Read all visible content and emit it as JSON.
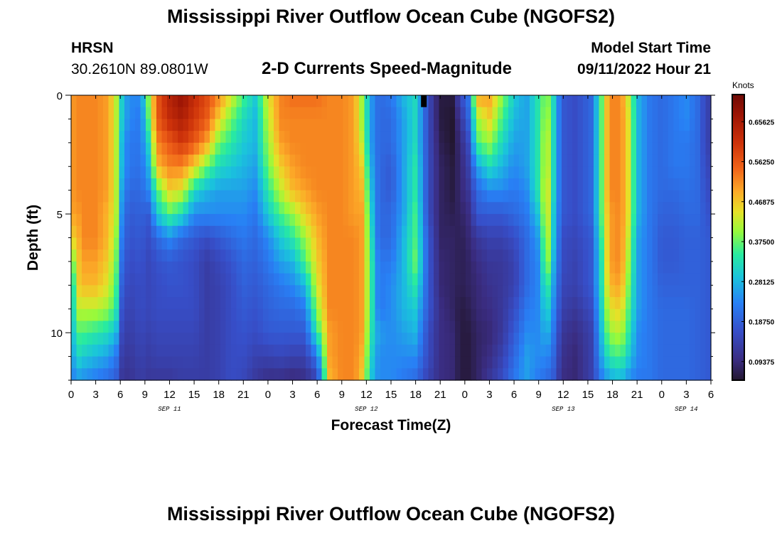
{
  "title": "Mississippi River Outflow Ocean Cube (NGOFS2)",
  "title_repeat": "Mississippi River Outflow Ocean Cube (NGOFS2)",
  "station": {
    "name": "HRSN",
    "coords": "30.2610N  89.0801W"
  },
  "model": {
    "label": "Model Start Time",
    "value": "09/11/2022 Hour 21"
  },
  "chart_data": {
    "type": "heatmap",
    "title": "2-D Currents Speed-Magnitude",
    "xlabel": "Forecast Time(Z)",
    "ylabel": "Depth (ft)",
    "units": "Knots",
    "x_hours_range": [
      0,
      78
    ],
    "x_tick_step_hours": 3,
    "x_tick_labels": [
      "0",
      "3",
      "6",
      "9",
      "12",
      "15",
      "18",
      "21",
      "0",
      "3",
      "6",
      "9",
      "12",
      "15",
      "18",
      "21",
      "0",
      "3",
      "6",
      "9",
      "12",
      "15",
      "18",
      "21",
      "0",
      "3",
      "6"
    ],
    "day_labels": [
      {
        "label": "SEP 11",
        "hour": 12
      },
      {
        "label": "SEP 12",
        "hour": 36
      },
      {
        "label": "SEP 13",
        "hour": 60
      },
      {
        "label": "SEP 14",
        "hour": 75
      }
    ],
    "y_range_ft": [
      0,
      12
    ],
    "y_tick_values": [
      0,
      5,
      10
    ],
    "value_range": [
      0.05,
      0.72
    ],
    "colorbar_ticks": [
      "0.09375",
      "0.18750",
      "0.28125",
      "0.37500",
      "0.46875",
      "0.56250",
      "0.65625"
    ],
    "depth_levels_ft": [
      0,
      1,
      2,
      3,
      4,
      5,
      6,
      7,
      8,
      9,
      10,
      11,
      12
    ],
    "columns": [
      {
        "hour": 0,
        "values": [
          0.5,
          0.5,
          0.5,
          0.5,
          0.5,
          0.5,
          0.45,
          0.35,
          0.26,
          0.26,
          0.26,
          0.24,
          0.22
        ]
      },
      {
        "hour": 0.75,
        "values": [
          0.52,
          0.52,
          0.52,
          0.52,
          0.52,
          0.5,
          0.48,
          0.46,
          0.46,
          0.42,
          0.36,
          0.32,
          0.25
        ]
      },
      {
        "hour": 1.5,
        "values": [
          0.52,
          0.52,
          0.52,
          0.52,
          0.52,
          0.52,
          0.52,
          0.5,
          0.48,
          0.42,
          0.36,
          0.3,
          0.24
        ]
      },
      {
        "hour": 3,
        "values": [
          0.52,
          0.52,
          0.52,
          0.52,
          0.52,
          0.52,
          0.52,
          0.5,
          0.48,
          0.42,
          0.34,
          0.28,
          0.22
        ]
      },
      {
        "hour": 4.5,
        "values": [
          0.5,
          0.5,
          0.5,
          0.5,
          0.5,
          0.48,
          0.48,
          0.46,
          0.44,
          0.4,
          0.32,
          0.26,
          0.2
        ]
      },
      {
        "hour": 5.5,
        "values": [
          0.42,
          0.42,
          0.42,
          0.42,
          0.42,
          0.42,
          0.4,
          0.38,
          0.36,
          0.34,
          0.28,
          0.22,
          0.18
        ]
      },
      {
        "hour": 6,
        "values": [
          0.32,
          0.32,
          0.3,
          0.3,
          0.28,
          0.26,
          0.24,
          0.22,
          0.2,
          0.18,
          0.16,
          0.14,
          0.12
        ]
      },
      {
        "hour": 7,
        "values": [
          0.24,
          0.24,
          0.22,
          0.22,
          0.2,
          0.18,
          0.17,
          0.16,
          0.15,
          0.14,
          0.13,
          0.12,
          0.11
        ]
      },
      {
        "hour": 8.5,
        "values": [
          0.24,
          0.22,
          0.22,
          0.21,
          0.2,
          0.19,
          0.18,
          0.17,
          0.16,
          0.16,
          0.15,
          0.14,
          0.13
        ]
      },
      {
        "hour": 9.5,
        "values": [
          0.4,
          0.38,
          0.32,
          0.28,
          0.24,
          0.18,
          0.16,
          0.15,
          0.15,
          0.15,
          0.14,
          0.13,
          0.12
        ]
      },
      {
        "hour": 10.5,
        "values": [
          0.56,
          0.56,
          0.52,
          0.48,
          0.36,
          0.3,
          0.2,
          0.17,
          0.16,
          0.16,
          0.15,
          0.14,
          0.12
        ]
      },
      {
        "hour": 12,
        "values": [
          0.64,
          0.62,
          0.56,
          0.52,
          0.46,
          0.36,
          0.24,
          0.18,
          0.17,
          0.16,
          0.15,
          0.14,
          0.12
        ]
      },
      {
        "hour": 13.5,
        "values": [
          0.68,
          0.65,
          0.6,
          0.52,
          0.44,
          0.32,
          0.2,
          0.17,
          0.17,
          0.16,
          0.15,
          0.14,
          0.13
        ]
      },
      {
        "hour": 15,
        "values": [
          0.62,
          0.6,
          0.56,
          0.46,
          0.32,
          0.24,
          0.18,
          0.16,
          0.16,
          0.16,
          0.15,
          0.14,
          0.13
        ]
      },
      {
        "hour": 16.5,
        "values": [
          0.58,
          0.56,
          0.5,
          0.38,
          0.28,
          0.24,
          0.16,
          0.13,
          0.13,
          0.13,
          0.13,
          0.13,
          0.13
        ]
      },
      {
        "hour": 18,
        "values": [
          0.52,
          0.46,
          0.38,
          0.32,
          0.26,
          0.24,
          0.18,
          0.15,
          0.14,
          0.14,
          0.14,
          0.14,
          0.14
        ]
      },
      {
        "hour": 19.5,
        "values": [
          0.44,
          0.38,
          0.34,
          0.3,
          0.26,
          0.24,
          0.2,
          0.17,
          0.16,
          0.16,
          0.16,
          0.16,
          0.16
        ]
      },
      {
        "hour": 21,
        "values": [
          0.36,
          0.32,
          0.3,
          0.28,
          0.26,
          0.24,
          0.22,
          0.2,
          0.19,
          0.18,
          0.17,
          0.16,
          0.15
        ]
      },
      {
        "hour": 22.5,
        "values": [
          0.3,
          0.28,
          0.28,
          0.26,
          0.24,
          0.22,
          0.2,
          0.19,
          0.18,
          0.17,
          0.16,
          0.14,
          0.12
        ]
      },
      {
        "hour": 24,
        "values": [
          0.44,
          0.42,
          0.4,
          0.38,
          0.34,
          0.3,
          0.24,
          0.22,
          0.2,
          0.19,
          0.18,
          0.14,
          0.1
        ]
      },
      {
        "hour": 25.5,
        "values": [
          0.52,
          0.52,
          0.5,
          0.46,
          0.42,
          0.36,
          0.3,
          0.26,
          0.22,
          0.2,
          0.18,
          0.15,
          0.1
        ]
      },
      {
        "hour": 27,
        "values": [
          0.54,
          0.52,
          0.52,
          0.5,
          0.48,
          0.4,
          0.34,
          0.28,
          0.24,
          0.2,
          0.18,
          0.14,
          0.09
        ]
      },
      {
        "hour": 28.5,
        "values": [
          0.54,
          0.52,
          0.52,
          0.52,
          0.5,
          0.46,
          0.4,
          0.36,
          0.28,
          0.22,
          0.18,
          0.14,
          0.1
        ]
      },
      {
        "hour": 30,
        "values": [
          0.54,
          0.52,
          0.52,
          0.52,
          0.52,
          0.5,
          0.48,
          0.46,
          0.44,
          0.4,
          0.34,
          0.22,
          0.14
        ]
      },
      {
        "hour": 31.5,
        "values": [
          0.52,
          0.52,
          0.52,
          0.52,
          0.52,
          0.52,
          0.52,
          0.52,
          0.52,
          0.52,
          0.5,
          0.5,
          0.48
        ]
      },
      {
        "hour": 33,
        "values": [
          0.52,
          0.52,
          0.52,
          0.52,
          0.52,
          0.52,
          0.52,
          0.52,
          0.52,
          0.52,
          0.52,
          0.52,
          0.52
        ]
      },
      {
        "hour": 34.5,
        "values": [
          0.5,
          0.5,
          0.5,
          0.5,
          0.5,
          0.5,
          0.52,
          0.52,
          0.52,
          0.52,
          0.52,
          0.52,
          0.52
        ]
      },
      {
        "hour": 35.5,
        "values": [
          0.4,
          0.4,
          0.42,
          0.46,
          0.48,
          0.5,
          0.5,
          0.5,
          0.5,
          0.5,
          0.5,
          0.48,
          0.46
        ]
      },
      {
        "hour": 36.5,
        "values": [
          0.26,
          0.26,
          0.26,
          0.28,
          0.3,
          0.32,
          0.34,
          0.36,
          0.36,
          0.36,
          0.34,
          0.32,
          0.3
        ]
      },
      {
        "hour": 37.5,
        "values": [
          0.2,
          0.2,
          0.2,
          0.2,
          0.2,
          0.2,
          0.2,
          0.22,
          0.22,
          0.22,
          0.26,
          0.24,
          0.24
        ]
      },
      {
        "hour": 39,
        "values": [
          0.22,
          0.2,
          0.2,
          0.18,
          0.18,
          0.2,
          0.2,
          0.22,
          0.24,
          0.24,
          0.24,
          0.24,
          0.24
        ]
      },
      {
        "hour": 40.5,
        "values": [
          0.28,
          0.26,
          0.26,
          0.26,
          0.26,
          0.26,
          0.28,
          0.28,
          0.28,
          0.28,
          0.26,
          0.24,
          0.22
        ]
      },
      {
        "hour": 42,
        "values": [
          0.32,
          0.32,
          0.32,
          0.34,
          0.34,
          0.36,
          0.36,
          0.38,
          0.34,
          0.3,
          0.28,
          0.24,
          0.2
        ]
      },
      {
        "hour": 43.5,
        "values": [
          0.16,
          0.16,
          0.16,
          0.16,
          0.16,
          0.16,
          0.18,
          0.18,
          0.18,
          0.18,
          0.16,
          0.16,
          0.14
        ]
      },
      {
        "hour": 45,
        "values": [
          0.06,
          0.06,
          0.07,
          0.08,
          0.08,
          0.08,
          0.08,
          0.09,
          0.09,
          0.1,
          0.1,
          0.1,
          0.1
        ]
      },
      {
        "hour": 46.5,
        "values": [
          0.06,
          0.05,
          0.05,
          0.06,
          0.06,
          0.07,
          0.08,
          0.08,
          0.08,
          0.08,
          0.09,
          0.09,
          0.09
        ]
      },
      {
        "hour": 47.5,
        "values": [
          0.16,
          0.12,
          0.1,
          0.09,
          0.09,
          0.08,
          0.07,
          0.07,
          0.07,
          0.06,
          0.06,
          0.06,
          0.06
        ]
      },
      {
        "hour": 48.5,
        "values": [
          0.22,
          0.2,
          0.16,
          0.14,
          0.12,
          0.1,
          0.09,
          0.08,
          0.08,
          0.07,
          0.06,
          0.06,
          0.06
        ]
      },
      {
        "hour": 49.5,
        "values": [
          0.5,
          0.4,
          0.36,
          0.26,
          0.2,
          0.18,
          0.12,
          0.1,
          0.09,
          0.09,
          0.08,
          0.08,
          0.08
        ]
      },
      {
        "hour": 51,
        "values": [
          0.5,
          0.46,
          0.4,
          0.32,
          0.24,
          0.18,
          0.14,
          0.12,
          0.11,
          0.1,
          0.09,
          0.1,
          0.12
        ]
      },
      {
        "hour": 52.5,
        "values": [
          0.4,
          0.36,
          0.32,
          0.28,
          0.24,
          0.18,
          0.14,
          0.12,
          0.12,
          0.12,
          0.12,
          0.14,
          0.16
        ]
      },
      {
        "hour": 54,
        "values": [
          0.3,
          0.28,
          0.26,
          0.24,
          0.22,
          0.2,
          0.16,
          0.14,
          0.14,
          0.16,
          0.18,
          0.2,
          0.22
        ]
      },
      {
        "hour": 55.5,
        "values": [
          0.26,
          0.26,
          0.26,
          0.26,
          0.24,
          0.22,
          0.2,
          0.2,
          0.2,
          0.22,
          0.24,
          0.26,
          0.26
        ]
      },
      {
        "hour": 57,
        "values": [
          0.34,
          0.34,
          0.34,
          0.34,
          0.34,
          0.3,
          0.26,
          0.24,
          0.24,
          0.24,
          0.24,
          0.24,
          0.22
        ]
      },
      {
        "hour": 58,
        "values": [
          0.4,
          0.42,
          0.44,
          0.44,
          0.46,
          0.46,
          0.44,
          0.42,
          0.36,
          0.32,
          0.28,
          0.24,
          0.2
        ]
      },
      {
        "hour": 58.8,
        "values": [
          0.32,
          0.32,
          0.32,
          0.32,
          0.32,
          0.3,
          0.3,
          0.28,
          0.26,
          0.24,
          0.22,
          0.2,
          0.18
        ]
      },
      {
        "hour": 59.8,
        "values": [
          0.18,
          0.18,
          0.18,
          0.18,
          0.18,
          0.18,
          0.16,
          0.16,
          0.15,
          0.14,
          0.12,
          0.11,
          0.1
        ]
      },
      {
        "hour": 61.5,
        "values": [
          0.16,
          0.16,
          0.16,
          0.16,
          0.16,
          0.16,
          0.15,
          0.14,
          0.14,
          0.12,
          0.1,
          0.09,
          0.09
        ]
      },
      {
        "hour": 63.5,
        "values": [
          0.2,
          0.2,
          0.2,
          0.2,
          0.2,
          0.2,
          0.18,
          0.18,
          0.18,
          0.16,
          0.14,
          0.14,
          0.14
        ]
      },
      {
        "hour": 64.6,
        "values": [
          0.36,
          0.36,
          0.36,
          0.36,
          0.36,
          0.36,
          0.34,
          0.32,
          0.32,
          0.3,
          0.28,
          0.26,
          0.22
        ]
      },
      {
        "hour": 65.6,
        "values": [
          0.52,
          0.52,
          0.52,
          0.52,
          0.52,
          0.5,
          0.5,
          0.5,
          0.48,
          0.44,
          0.4,
          0.34,
          0.26
        ]
      },
      {
        "hour": 67,
        "values": [
          0.52,
          0.52,
          0.52,
          0.52,
          0.52,
          0.52,
          0.52,
          0.52,
          0.5,
          0.46,
          0.42,
          0.36,
          0.28
        ]
      },
      {
        "hour": 68,
        "values": [
          0.42,
          0.44,
          0.44,
          0.44,
          0.44,
          0.44,
          0.42,
          0.4,
          0.38,
          0.36,
          0.34,
          0.3,
          0.24
        ]
      },
      {
        "hour": 69,
        "values": [
          0.28,
          0.28,
          0.28,
          0.28,
          0.28,
          0.28,
          0.26,
          0.26,
          0.26,
          0.26,
          0.24,
          0.24,
          0.22
        ]
      },
      {
        "hour": 70.5,
        "values": [
          0.22,
          0.22,
          0.22,
          0.22,
          0.22,
          0.22,
          0.22,
          0.22,
          0.22,
          0.22,
          0.22,
          0.22,
          0.22
        ]
      },
      {
        "hour": 72,
        "values": [
          0.2,
          0.2,
          0.2,
          0.2,
          0.2,
          0.19,
          0.18,
          0.18,
          0.19,
          0.2,
          0.2,
          0.2,
          0.2
        ]
      },
      {
        "hour": 73.5,
        "values": [
          0.22,
          0.22,
          0.22,
          0.22,
          0.2,
          0.19,
          0.18,
          0.18,
          0.19,
          0.2,
          0.2,
          0.2,
          0.2
        ]
      },
      {
        "hour": 75,
        "values": [
          0.24,
          0.24,
          0.22,
          0.22,
          0.21,
          0.2,
          0.19,
          0.19,
          0.19,
          0.2,
          0.2,
          0.2,
          0.2
        ]
      },
      {
        "hour": 76.5,
        "values": [
          0.2,
          0.2,
          0.2,
          0.2,
          0.2,
          0.2,
          0.19,
          0.19,
          0.19,
          0.19,
          0.19,
          0.19,
          0.19
        ]
      },
      {
        "hour": 77.5,
        "values": [
          0.14,
          0.14,
          0.14,
          0.15,
          0.16,
          0.17,
          0.18,
          0.18,
          0.18,
          0.18,
          0.18,
          0.18,
          0.18
        ]
      }
    ],
    "marker": {
      "hour": 43,
      "depth_range_ft": [
        0,
        0.5
      ]
    }
  }
}
